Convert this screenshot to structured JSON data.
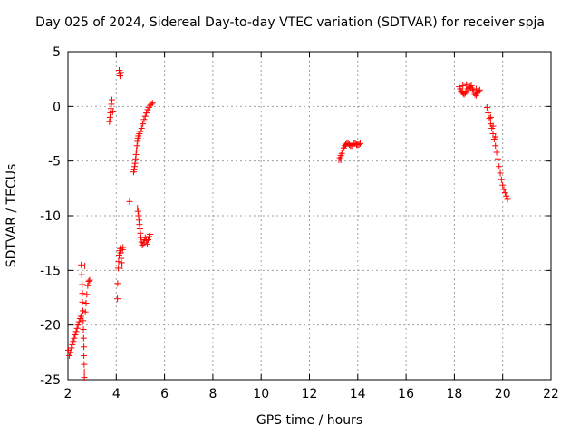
{
  "chart_data": {
    "type": "scatter",
    "title": "Day 025 of 2024, Sidereal Day-to-day VTEC variation (SDTVAR) for receiver spja",
    "xlabel": "GPS time / hours",
    "ylabel": "SDTVAR / TECUs",
    "xlim": [
      2,
      22
    ],
    "ylim": [
      -25,
      5
    ],
    "xticks": [
      2,
      4,
      6,
      8,
      10,
      12,
      14,
      16,
      18,
      20,
      22
    ],
    "yticks": [
      5,
      0,
      -5,
      -10,
      -15,
      -20,
      -25
    ],
    "grid": true,
    "marker": "+",
    "color": "#ff0000",
    "series": [
      {
        "name": "SDTVAR",
        "points": [
          [
            2.02,
            -22.3
          ],
          [
            2.06,
            -22.8
          ],
          [
            2.1,
            -22.5
          ],
          [
            2.14,
            -22.1
          ],
          [
            2.18,
            -21.8
          ],
          [
            2.22,
            -21.5
          ],
          [
            2.26,
            -21.2
          ],
          [
            2.3,
            -20.9
          ],
          [
            2.34,
            -20.6
          ],
          [
            2.38,
            -20.3
          ],
          [
            2.42,
            -20.0
          ],
          [
            2.46,
            -19.7
          ],
          [
            2.5,
            -19.4
          ],
          [
            2.54,
            -19.2
          ],
          [
            2.58,
            -19.0
          ],
          [
            2.55,
            -14.5
          ],
          [
            2.57,
            -15.4
          ],
          [
            2.59,
            -16.3
          ],
          [
            2.6,
            -17.1
          ],
          [
            2.6,
            -17.9
          ],
          [
            2.62,
            -18.7
          ],
          [
            2.63,
            -19.6
          ],
          [
            2.64,
            -20.4
          ],
          [
            2.65,
            -21.2
          ],
          [
            2.66,
            -22.0
          ],
          [
            2.66,
            -22.8
          ],
          [
            2.67,
            -23.6
          ],
          [
            2.68,
            -24.3
          ],
          [
            2.68,
            -24.8
          ],
          [
            2.7,
            -14.6
          ],
          [
            2.72,
            -18.8
          ],
          [
            2.75,
            -18.0
          ],
          [
            2.78,
            -17.2
          ],
          [
            2.82,
            -16.4
          ],
          [
            2.86,
            -16.0
          ],
          [
            2.9,
            -15.9
          ],
          [
            3.72,
            -1.4
          ],
          [
            3.74,
            -1.0
          ],
          [
            3.76,
            -0.6
          ],
          [
            3.78,
            -0.2
          ],
          [
            3.8,
            0.2
          ],
          [
            3.82,
            0.6
          ],
          [
            3.85,
            -0.5
          ],
          [
            4.05,
            -17.6
          ],
          [
            4.06,
            -16.2
          ],
          [
            4.08,
            -14.8
          ],
          [
            4.1,
            -14.2
          ],
          [
            4.12,
            -13.6
          ],
          [
            4.14,
            -13.2
          ],
          [
            4.16,
            -13.0
          ],
          [
            4.18,
            -13.4
          ],
          [
            4.2,
            -13.9
          ],
          [
            4.22,
            -14.3
          ],
          [
            4.24,
            -14.6
          ],
          [
            4.26,
            -13.1
          ],
          [
            4.28,
            -12.9
          ],
          [
            4.12,
            3.3
          ],
          [
            4.14,
            3.0
          ],
          [
            4.16,
            2.8
          ],
          [
            4.2,
            3.1
          ],
          [
            4.55,
            -8.7
          ],
          [
            4.72,
            -6.0
          ],
          [
            4.74,
            -5.8
          ],
          [
            4.76,
            -5.5
          ],
          [
            4.78,
            -5.2
          ],
          [
            4.8,
            -4.8
          ],
          [
            4.82,
            -4.4
          ],
          [
            4.84,
            -4.0
          ],
          [
            4.86,
            -3.6
          ],
          [
            4.88,
            -3.2
          ],
          [
            4.9,
            -2.9
          ],
          [
            4.92,
            -2.7
          ],
          [
            4.96,
            -2.5
          ],
          [
            5.0,
            -2.3
          ],
          [
            5.05,
            -2.0
          ],
          [
            5.1,
            -1.6
          ],
          [
            5.15,
            -1.2
          ],
          [
            5.2,
            -0.9
          ],
          [
            5.25,
            -0.6
          ],
          [
            5.3,
            -0.3
          ],
          [
            5.35,
            -0.1
          ],
          [
            5.4,
            0.1
          ],
          [
            5.45,
            0.2
          ],
          [
            5.5,
            0.3
          ],
          [
            4.88,
            -9.3
          ],
          [
            4.9,
            -9.6
          ],
          [
            4.92,
            -10.0
          ],
          [
            4.94,
            -10.4
          ],
          [
            4.96,
            -10.8
          ],
          [
            4.98,
            -11.2
          ],
          [
            5.0,
            -11.6
          ],
          [
            5.02,
            -12.0
          ],
          [
            5.05,
            -12.4
          ],
          [
            5.08,
            -12.7
          ],
          [
            5.12,
            -12.5
          ],
          [
            5.16,
            -12.2
          ],
          [
            5.2,
            -12.0
          ],
          [
            5.24,
            -12.3
          ],
          [
            5.28,
            -12.6
          ],
          [
            5.32,
            -12.2
          ],
          [
            5.36,
            -11.9
          ],
          [
            5.4,
            -11.7
          ],
          [
            13.22,
            -4.9
          ],
          [
            13.26,
            -4.7
          ],
          [
            13.3,
            -4.5
          ],
          [
            13.34,
            -4.3
          ],
          [
            13.38,
            -4.0
          ],
          [
            13.42,
            -3.8
          ],
          [
            13.46,
            -3.6
          ],
          [
            13.5,
            -3.5
          ],
          [
            13.55,
            -3.4
          ],
          [
            13.6,
            -3.4
          ],
          [
            13.65,
            -3.5
          ],
          [
            13.7,
            -3.6
          ],
          [
            13.75,
            -3.6
          ],
          [
            13.8,
            -3.5
          ],
          [
            13.85,
            -3.4
          ],
          [
            13.9,
            -3.4
          ],
          [
            13.95,
            -3.5
          ],
          [
            14.0,
            -3.5
          ],
          [
            14.05,
            -3.5
          ],
          [
            14.1,
            -3.4
          ],
          [
            13.3,
            -4.9
          ],
          [
            18.2,
            1.8
          ],
          [
            18.24,
            1.6
          ],
          [
            18.28,
            1.4
          ],
          [
            18.32,
            1.3
          ],
          [
            18.36,
            1.2
          ],
          [
            18.4,
            1.1
          ],
          [
            18.45,
            1.2
          ],
          [
            18.5,
            1.4
          ],
          [
            18.55,
            1.6
          ],
          [
            18.6,
            1.7
          ],
          [
            18.65,
            1.8
          ],
          [
            18.7,
            1.7
          ],
          [
            18.75,
            1.5
          ],
          [
            18.8,
            1.3
          ],
          [
            18.85,
            1.1
          ],
          [
            18.9,
            1.0
          ],
          [
            18.95,
            1.2
          ],
          [
            19.0,
            1.4
          ],
          [
            18.35,
            1.9
          ],
          [
            18.5,
            2.0
          ],
          [
            18.7,
            1.9
          ],
          [
            18.9,
            1.6
          ],
          [
            19.05,
            1.5
          ],
          [
            19.35,
            -0.1
          ],
          [
            19.4,
            -0.6
          ],
          [
            19.45,
            -1.1
          ],
          [
            19.5,
            -1.6
          ],
          [
            19.55,
            -2.0
          ],
          [
            19.6,
            -2.5
          ],
          [
            19.65,
            -3.0
          ],
          [
            19.7,
            -3.6
          ],
          [
            19.75,
            -4.2
          ],
          [
            19.8,
            -4.8
          ],
          [
            19.85,
            -5.5
          ],
          [
            19.9,
            -6.1
          ],
          [
            19.95,
            -6.7
          ],
          [
            20.0,
            -7.2
          ],
          [
            20.05,
            -7.6
          ],
          [
            20.1,
            -7.9
          ],
          [
            20.15,
            -8.2
          ],
          [
            20.2,
            -8.5
          ],
          [
            19.5,
            -1.0
          ],
          [
            19.6,
            -1.8
          ],
          [
            19.7,
            -2.8
          ]
        ]
      }
    ]
  }
}
